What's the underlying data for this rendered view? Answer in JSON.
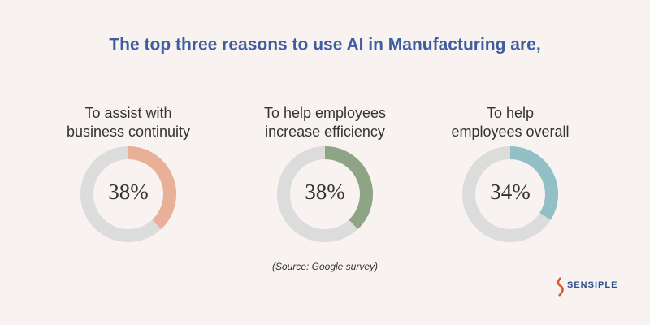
{
  "title": "The top three reasons to use AI in Manufacturing are,",
  "chart_data": [
    {
      "type": "donut",
      "title": [
        "To assist with",
        "business continuity"
      ],
      "values": [
        38
      ],
      "value_labels": [
        "38%"
      ],
      "color": "#e8b096",
      "track_color": "#dcdcdc"
    },
    {
      "type": "donut",
      "title": [
        "To help employees",
        "increase efficiency"
      ],
      "values": [
        38
      ],
      "value_labels": [
        "38%"
      ],
      "color": "#8ea585",
      "track_color": "#dcdcdc"
    },
    {
      "type": "donut",
      "title": [
        "To help",
        "employees overall"
      ],
      "values": [
        34
      ],
      "value_labels": [
        "34%"
      ],
      "color": "#93bfc6",
      "track_color": "#dcdcdc"
    }
  ],
  "source": "(Source: Google survey)",
  "logo": "SENSIPLE"
}
